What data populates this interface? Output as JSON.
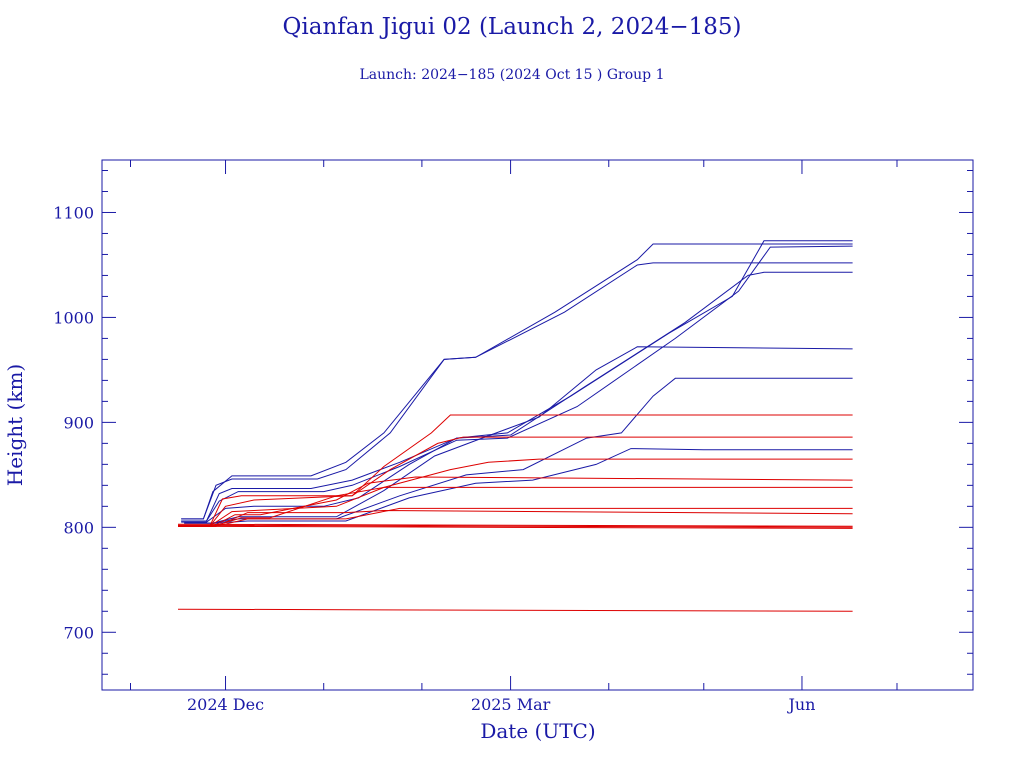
{
  "chart_data": {
    "type": "line",
    "title": "Qianfan Jigui 02 (Launch 2, 2024−185)",
    "subtitle": "Launch: 2024−185  (2024 Oct 15 )  Group 1",
    "xlabel": "Date (UTC)",
    "ylabel": "Height (km)",
    "x_axis_type": "date",
    "xlim": [
      "2024-10-23",
      "2025-07-25"
    ],
    "ylim": [
      645,
      1150
    ],
    "x_ticks": [
      {
        "date": "2024-12-01",
        "label": "2024 Dec"
      },
      {
        "date": "2025-03-01",
        "label": "2025 Mar"
      },
      {
        "date": "2025-06-01",
        "label": "Jun"
      }
    ],
    "x_minor_ticks": [
      "2024-11-01",
      "2025-01-01",
      "2025-02-01",
      "2025-04-01",
      "2025-05-01",
      "2025-07-01"
    ],
    "y_ticks": [
      700,
      800,
      900,
      1000,
      1100
    ],
    "y_minor_step": 20,
    "colors": {
      "axis": "#1a1aa6",
      "blue_series": "#1a1aa6",
      "red_series": "#dd0000"
    },
    "series": [
      {
        "color": "blue",
        "points": [
          [
            "2024-11-17",
            808
          ],
          [
            "2024-11-24",
            808
          ],
          [
            "2024-11-27",
            834
          ],
          [
            "2024-12-03",
            849
          ],
          [
            "2024-12-28",
            849
          ],
          [
            "2025-01-08",
            862
          ],
          [
            "2025-01-20",
            890
          ],
          [
            "2025-02-08",
            960
          ],
          [
            "2025-02-18",
            962
          ],
          [
            "2025-03-15",
            1005
          ],
          [
            "2025-04-10",
            1055
          ],
          [
            "2025-04-15",
            1070
          ],
          [
            "2025-06-17",
            1070
          ]
        ]
      },
      {
        "color": "blue",
        "points": [
          [
            "2024-11-17",
            808
          ],
          [
            "2024-11-24",
            808
          ],
          [
            "2024-11-28",
            840
          ],
          [
            "2024-12-03",
            846
          ],
          [
            "2024-12-30",
            846
          ],
          [
            "2025-01-08",
            855
          ],
          [
            "2025-01-22",
            890
          ],
          [
            "2025-02-08",
            960
          ],
          [
            "2025-02-18",
            962
          ],
          [
            "2025-03-18",
            1005
          ],
          [
            "2025-04-10",
            1050
          ],
          [
            "2025-04-15",
            1052
          ],
          [
            "2025-06-17",
            1052
          ]
        ]
      },
      {
        "color": "blue",
        "points": [
          [
            "2024-11-17",
            806
          ],
          [
            "2024-11-25",
            806
          ],
          [
            "2024-11-29",
            832
          ],
          [
            "2024-12-03",
            837
          ],
          [
            "2024-12-28",
            837
          ],
          [
            "2025-01-10",
            845
          ],
          [
            "2025-01-25",
            862
          ],
          [
            "2025-02-12",
            885
          ],
          [
            "2025-02-28",
            890
          ],
          [
            "2025-03-20",
            925
          ],
          [
            "2025-04-20",
            985
          ],
          [
            "2025-05-10",
            1020
          ],
          [
            "2025-05-20",
            1073
          ],
          [
            "2025-06-17",
            1073
          ]
        ]
      },
      {
        "color": "blue",
        "points": [
          [
            "2024-11-17",
            806
          ],
          [
            "2024-11-25",
            806
          ],
          [
            "2024-11-29",
            825
          ],
          [
            "2024-12-05",
            834
          ],
          [
            "2025-01-01",
            834
          ],
          [
            "2025-01-10",
            840
          ],
          [
            "2025-01-25",
            858
          ],
          [
            "2025-02-12",
            883
          ],
          [
            "2025-02-28",
            885
          ],
          [
            "2025-03-22",
            915
          ],
          [
            "2025-04-22",
            980
          ],
          [
            "2025-05-12",
            1025
          ],
          [
            "2025-05-22",
            1067
          ],
          [
            "2025-06-17",
            1068
          ]
        ]
      },
      {
        "color": "blue",
        "points": [
          [
            "2024-11-17",
            805
          ],
          [
            "2024-11-25",
            805
          ],
          [
            "2024-12-01",
            818
          ],
          [
            "2024-12-10",
            820
          ],
          [
            "2025-01-01",
            820
          ],
          [
            "2025-01-12",
            828
          ],
          [
            "2025-01-28",
            860
          ],
          [
            "2025-02-12",
            885
          ],
          [
            "2025-03-01",
            888
          ],
          [
            "2025-03-25",
            935
          ],
          [
            "2025-04-25",
            995
          ],
          [
            "2025-05-15",
            1040
          ],
          [
            "2025-05-20",
            1043
          ],
          [
            "2025-06-17",
            1043
          ]
        ]
      },
      {
        "color": "blue",
        "points": [
          [
            "2024-11-18",
            804
          ],
          [
            "2024-11-27",
            804
          ],
          [
            "2024-12-05",
            810
          ],
          [
            "2025-01-05",
            810
          ],
          [
            "2025-01-20",
            835
          ],
          [
            "2025-02-05",
            868
          ],
          [
            "2025-02-20",
            885
          ],
          [
            "2025-03-10",
            905
          ],
          [
            "2025-03-28",
            950
          ],
          [
            "2025-04-10",
            972
          ],
          [
            "2025-06-17",
            970
          ]
        ]
      },
      {
        "color": "blue",
        "points": [
          [
            "2024-11-18",
            804
          ],
          [
            "2024-11-27",
            804
          ],
          [
            "2024-12-05",
            808
          ],
          [
            "2025-01-05",
            808
          ],
          [
            "2025-01-25",
            830
          ],
          [
            "2025-02-15",
            850
          ],
          [
            "2025-03-05",
            855
          ],
          [
            "2025-03-25",
            885
          ],
          [
            "2025-04-05",
            890
          ],
          [
            "2025-04-15",
            925
          ],
          [
            "2025-04-22",
            942
          ],
          [
            "2025-06-17",
            942
          ]
        ]
      },
      {
        "color": "blue",
        "points": [
          [
            "2024-11-18",
            804
          ],
          [
            "2024-11-28",
            804
          ],
          [
            "2024-12-08",
            806
          ],
          [
            "2025-01-08",
            806
          ],
          [
            "2025-01-28",
            828
          ],
          [
            "2025-02-18",
            842
          ],
          [
            "2025-03-08",
            845
          ],
          [
            "2025-03-28",
            860
          ],
          [
            "2025-04-08",
            875
          ],
          [
            "2025-05-01",
            874
          ],
          [
            "2025-06-17",
            874
          ]
        ]
      },
      {
        "color": "red",
        "points": [
          [
            "2024-11-16",
            801
          ],
          [
            "2024-11-26",
            801
          ],
          [
            "2024-11-30",
            827
          ],
          [
            "2024-12-06",
            830
          ],
          [
            "2025-01-10",
            830
          ],
          [
            "2025-01-20",
            858
          ],
          [
            "2025-02-04",
            890
          ],
          [
            "2025-02-10",
            907
          ],
          [
            "2025-06-17",
            907
          ]
        ]
      },
      {
        "color": "red",
        "points": [
          [
            "2024-11-16",
            801
          ],
          [
            "2024-11-26",
            801
          ],
          [
            "2024-12-01",
            820
          ],
          [
            "2024-12-10",
            826
          ],
          [
            "2025-01-10",
            830
          ],
          [
            "2025-01-22",
            855
          ],
          [
            "2025-02-06",
            880
          ],
          [
            "2025-02-14",
            886
          ],
          [
            "2025-06-17",
            886
          ]
        ]
      },
      {
        "color": "red",
        "points": [
          [
            "2024-11-16",
            801
          ],
          [
            "2024-11-26",
            801
          ],
          [
            "2024-12-03",
            815
          ],
          [
            "2024-12-10",
            816
          ],
          [
            "2025-01-05",
            820
          ],
          [
            "2025-01-20",
            838
          ],
          [
            "2025-02-10",
            855
          ],
          [
            "2025-02-22",
            862
          ],
          [
            "2025-03-10",
            865
          ],
          [
            "2025-06-17",
            865
          ]
        ]
      },
      {
        "color": "red",
        "points": [
          [
            "2024-11-16",
            801
          ],
          [
            "2024-11-27",
            801
          ],
          [
            "2024-12-04",
            812
          ],
          [
            "2024-12-12",
            812
          ],
          [
            "2025-01-05",
            826
          ],
          [
            "2025-01-15",
            842
          ],
          [
            "2025-01-30",
            848
          ],
          [
            "2025-06-17",
            845
          ]
        ]
      },
      {
        "color": "red",
        "points": [
          [
            "2024-11-16",
            801
          ],
          [
            "2024-11-27",
            801
          ],
          [
            "2024-12-06",
            809
          ],
          [
            "2024-12-15",
            809
          ],
          [
            "2025-01-05",
            830
          ],
          [
            "2025-01-20",
            838
          ],
          [
            "2025-06-17",
            838
          ]
        ]
      },
      {
        "color": "red",
        "points": [
          [
            "2024-11-16",
            801
          ],
          [
            "2024-11-28",
            801
          ],
          [
            "2024-12-08",
            808
          ],
          [
            "2025-01-08",
            808
          ],
          [
            "2025-01-25",
            818
          ],
          [
            "2025-06-17",
            818
          ]
        ]
      },
      {
        "color": "red",
        "points": [
          [
            "2024-11-16",
            801
          ],
          [
            "2024-11-28",
            801
          ],
          [
            "2024-12-08",
            814
          ],
          [
            "2025-01-08",
            814
          ],
          [
            "2025-01-20",
            816
          ],
          [
            "2025-06-17",
            813
          ]
        ]
      },
      {
        "color": "red",
        "points": [
          [
            "2024-11-16",
            803
          ],
          [
            "2025-06-17",
            801
          ]
        ]
      },
      {
        "color": "red",
        "points": [
          [
            "2024-11-16",
            802
          ],
          [
            "2025-06-17",
            800
          ]
        ]
      },
      {
        "color": "red",
        "points": [
          [
            "2024-11-16",
            801
          ],
          [
            "2025-06-17",
            799
          ]
        ]
      },
      {
        "color": "red",
        "points": [
          [
            "2024-11-16",
            722
          ],
          [
            "2025-06-17",
            720
          ]
        ]
      }
    ]
  }
}
